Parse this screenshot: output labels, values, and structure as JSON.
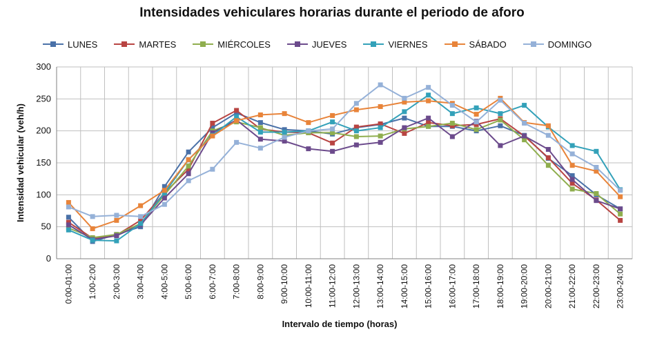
{
  "chart_data": {
    "type": "line",
    "title": "Intensidades vehiculares horarias durante el periodo de aforo",
    "xlabel": "Intervalo de tiempo (horas)",
    "ylabel": "Intensidad vehicular (veh/h)",
    "ylim": [
      0,
      300
    ],
    "yticks": [
      0,
      50,
      100,
      150,
      200,
      250,
      300
    ],
    "grid": true,
    "legend_position": "top",
    "categories": [
      "0:00-01:00",
      "1:00-2:00",
      "2:00-3:00",
      "3:00-4:00",
      "4:00-5:00",
      "5:00-6:00",
      "6:00-7:00",
      "7:00-8:00",
      "8:00-9:00",
      "9:00-10:00",
      "10:00-11:00",
      "11:00-12:00",
      "12:00-13:00",
      "13:00-14:00",
      "14:00-15:00",
      "15:00-16:00",
      "16:00-17:00",
      "17:00-18:00",
      "18:00-19:00",
      "19:00-20:00",
      "20:00-21:00",
      "21:00-22:00",
      "22:00-23:00",
      "23:00-24:00"
    ],
    "series": [
      {
        "name": "LUNES",
        "color": "#4a71a8",
        "values": [
          65,
          27,
          38,
          50,
          113,
          167,
          205,
          228,
          213,
          202,
          200,
          195,
          205,
          210,
          220,
          207,
          207,
          200,
          208,
          193,
          157,
          130,
          100,
          78
        ]
      },
      {
        "name": "MARTES",
        "color": "#b84442",
        "values": [
          57,
          32,
          37,
          60,
          103,
          140,
          212,
          232,
          203,
          198,
          197,
          181,
          206,
          211,
          196,
          213,
          208,
          210,
          219,
          192,
          158,
          118,
          92,
          60
        ]
      },
      {
        "name": "MIÉRCOLES",
        "color": "#8fae4e",
        "values": [
          48,
          33,
          38,
          55,
          100,
          145,
          200,
          214,
          205,
          193,
          197,
          197,
          191,
          192,
          203,
          207,
          212,
          202,
          217,
          186,
          146,
          109,
          102,
          70
        ]
      },
      {
        "name": "JUEVES",
        "color": "#6c4b8c",
        "values": [
          53,
          30,
          36,
          53,
          95,
          133,
          197,
          217,
          187,
          184,
          172,
          168,
          178,
          182,
          205,
          220,
          191,
          215,
          177,
          192,
          171,
          124,
          91,
          78
        ]
      },
      {
        "name": "VIERNES",
        "color": "#33a1b9",
        "values": [
          45,
          29,
          28,
          55,
          103,
          155,
          193,
          222,
          198,
          198,
          200,
          214,
          200,
          205,
          230,
          256,
          227,
          236,
          227,
          240,
          206,
          177,
          168,
          108
        ]
      },
      {
        "name": "SÁBADO",
        "color": "#e8843a",
        "values": [
          88,
          47,
          60,
          83,
          107,
          155,
          192,
          216,
          225,
          227,
          213,
          224,
          233,
          238,
          245,
          247,
          243,
          226,
          251,
          213,
          208,
          146,
          137,
          97
        ]
      },
      {
        "name": "DOMINGO",
        "color": "#95b1d8",
        "values": [
          81,
          66,
          68,
          66,
          85,
          122,
          140,
          182,
          173,
          190,
          200,
          203,
          243,
          272,
          251,
          268,
          240,
          214,
          248,
          212,
          193,
          164,
          143,
          107
        ]
      }
    ]
  }
}
